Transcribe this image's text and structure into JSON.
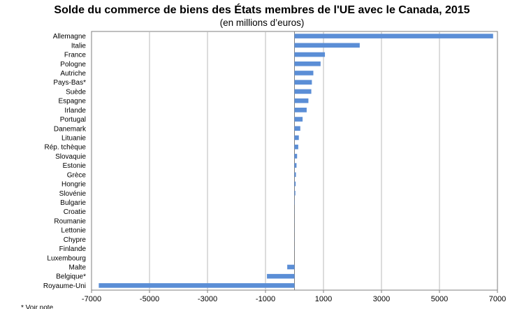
{
  "chart_data": {
    "type": "bar",
    "orientation": "horizontal",
    "title": "Solde du commerce de biens des États membres de l'UE avec le Canada, 2015",
    "subtitle": "(en millions d’euros)",
    "xlim": [
      -7000,
      7000
    ],
    "xticks": [
      -7000,
      -5000,
      -3000,
      -1000,
      1000,
      3000,
      5000,
      7000
    ],
    "grid": true,
    "bar_color": "#5B8ED6",
    "categories": [
      "Allemagne",
      "Italie",
      "France",
      "Pologne",
      "Autriche",
      "Pays-Bas*",
      "Suède",
      "Espagne",
      "Irlande",
      "Portugal",
      "Danemark",
      "Lituanie",
      "Rép. tchèque",
      "Slovaquie",
      "Estonie",
      "Grèce",
      "Hongrie",
      "Slovénie",
      "Bulgarie",
      "Croatie",
      "Roumanie",
      "Lettonie",
      "Chypre",
      "Finlande",
      "Luxembourg",
      "Malte",
      "Belgique*",
      "Royaume-Uni"
    ],
    "values": [
      6850,
      2250,
      1050,
      900,
      650,
      600,
      580,
      480,
      420,
      280,
      200,
      150,
      130,
      90,
      70,
      50,
      40,
      30,
      10,
      5,
      5,
      5,
      5,
      5,
      0,
      -250,
      -950,
      -6750
    ]
  },
  "footnote": "* Voir note"
}
